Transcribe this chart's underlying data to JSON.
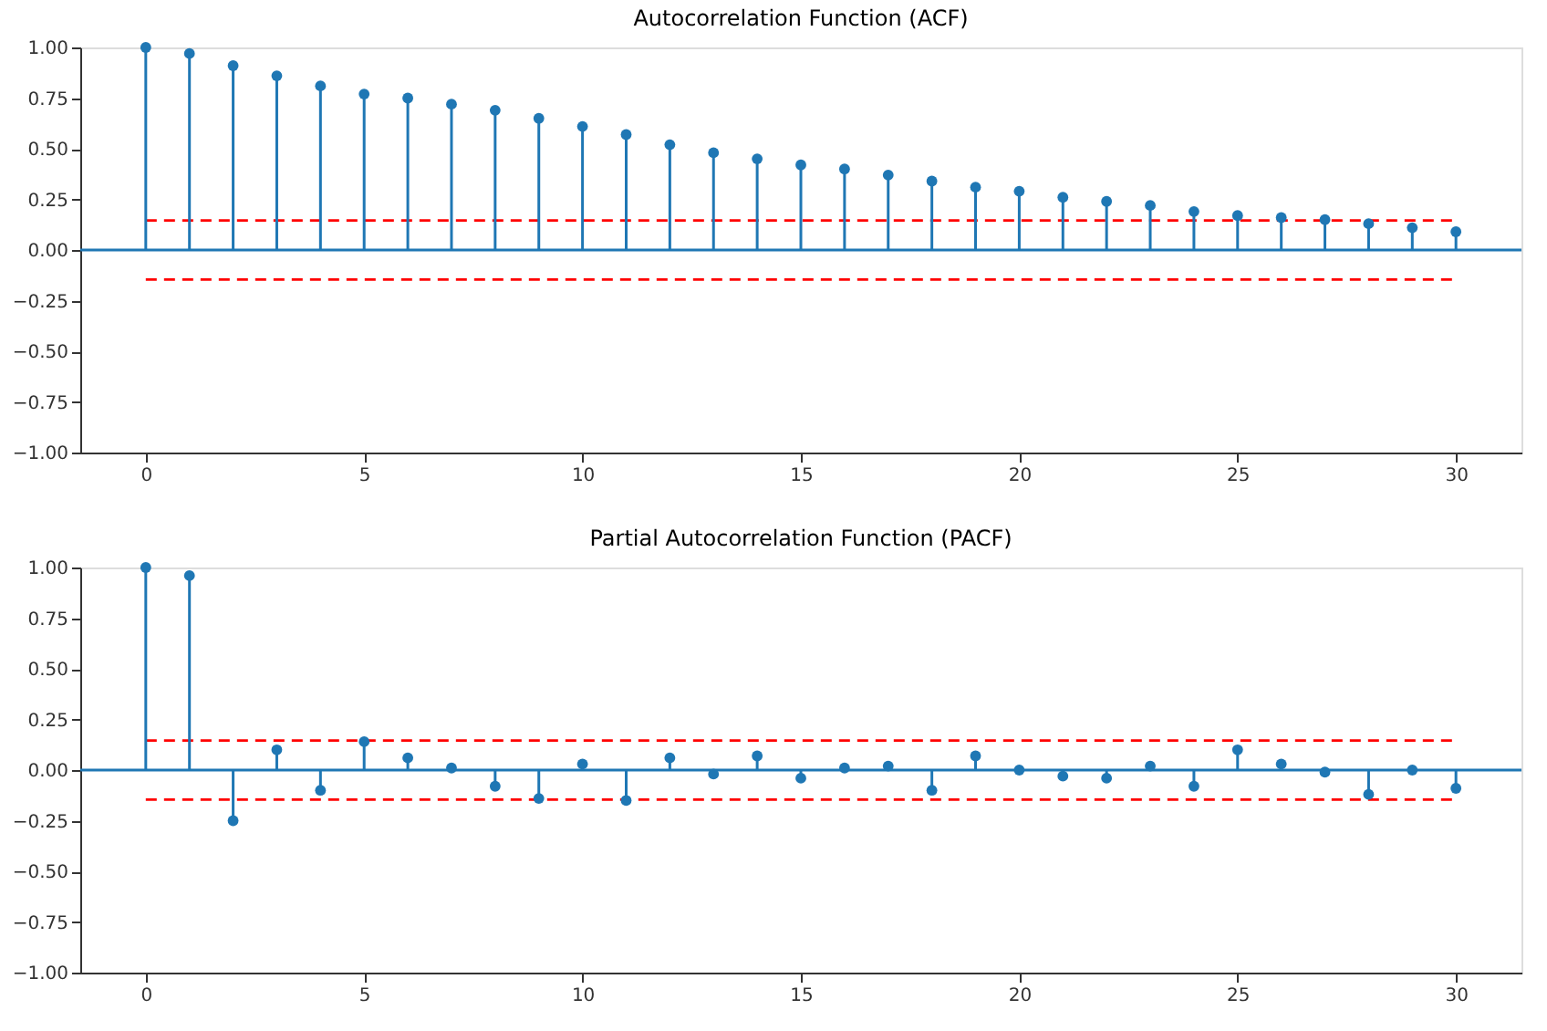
{
  "chart_data": [
    {
      "type": "lollipop",
      "title": "Autocorrelation Function (ACF)",
      "x": [
        0,
        1,
        2,
        3,
        4,
        5,
        6,
        7,
        8,
        9,
        10,
        11,
        12,
        13,
        14,
        15,
        16,
        17,
        18,
        19,
        20,
        21,
        22,
        23,
        24,
        25,
        26,
        27,
        28,
        29,
        30
      ],
      "series": [
        {
          "color": "#1f77b4",
          "values": [
            1.0,
            0.97,
            0.91,
            0.86,
            0.81,
            0.77,
            0.75,
            0.72,
            0.69,
            0.65,
            0.61,
            0.57,
            0.52,
            0.48,
            0.45,
            0.42,
            0.4,
            0.37,
            0.34,
            0.31,
            0.29,
            0.26,
            0.24,
            0.22,
            0.19,
            0.17,
            0.16,
            0.15,
            0.13,
            0.11,
            0.09
          ]
        }
      ],
      "xlim": [
        -1.5,
        31.5
      ],
      "xticks": [
        0,
        5,
        10,
        15,
        20,
        25,
        30
      ],
      "ylim": [
        -1,
        1
      ],
      "yticks": [
        {
          "value": -1,
          "label": "−1.00"
        },
        {
          "value": -0.75,
          "label": "−0.75"
        },
        {
          "value": -0.5,
          "label": "−0.50"
        },
        {
          "value": -0.25,
          "label": "−0.25"
        },
        {
          "value": 0,
          "label": "0.00"
        },
        {
          "value": 0.25,
          "label": "0.25"
        },
        {
          "value": 0.5,
          "label": "0.50"
        },
        {
          "value": 0.75,
          "label": "0.75"
        },
        {
          "value": 1,
          "label": "1.00"
        }
      ],
      "ref_lines": [
        {
          "axis": "y",
          "value": 0,
          "color": "#1f77b4",
          "line_style": "solid"
        },
        {
          "axis": "y",
          "value": 0.146,
          "color": "#ff0000",
          "line_style": "dashed"
        },
        {
          "axis": "y",
          "value": -0.146,
          "color": "#ff0000",
          "line_style": "dashed"
        }
      ],
      "marker": "circle",
      "grid": false
    },
    {
      "type": "lollipop",
      "title": "Partial Autocorrelation Function (PACF)",
      "x": [
        0,
        1,
        2,
        3,
        4,
        5,
        6,
        7,
        8,
        9,
        10,
        11,
        12,
        13,
        14,
        15,
        16,
        17,
        18,
        19,
        20,
        21,
        22,
        23,
        24,
        25,
        26,
        27,
        28,
        29,
        30
      ],
      "series": [
        {
          "color": "#1f77b4",
          "values": [
            1.0,
            0.96,
            -0.25,
            0.1,
            -0.1,
            0.14,
            0.06,
            0.01,
            -0.08,
            -0.14,
            0.03,
            -0.15,
            0.06,
            -0.02,
            0.07,
            -0.04,
            0.01,
            0.02,
            -0.1,
            0.07,
            0.0,
            -0.03,
            -0.04,
            0.02,
            -0.08,
            0.1,
            0.03,
            -0.01,
            -0.12,
            0.0,
            -0.09
          ]
        }
      ],
      "xlim": [
        -1.5,
        31.5
      ],
      "xticks": [
        0,
        5,
        10,
        15,
        20,
        25,
        30
      ],
      "ylim": [
        -1,
        1
      ],
      "yticks": [
        {
          "value": -1,
          "label": "−1.00"
        },
        {
          "value": -0.75,
          "label": "−0.75"
        },
        {
          "value": -0.5,
          "label": "−0.50"
        },
        {
          "value": -0.25,
          "label": "−0.25"
        },
        {
          "value": 0,
          "label": "0.00"
        },
        {
          "value": 0.25,
          "label": "0.25"
        },
        {
          "value": 0.5,
          "label": "0.50"
        },
        {
          "value": 0.75,
          "label": "0.75"
        },
        {
          "value": 1,
          "label": "1.00"
        }
      ],
      "ref_lines": [
        {
          "axis": "y",
          "value": 0,
          "color": "#1f77b4",
          "line_style": "solid"
        },
        {
          "axis": "y",
          "value": 0.146,
          "color": "#ff0000",
          "line_style": "dashed"
        },
        {
          "axis": "y",
          "value": -0.146,
          "color": "#ff0000",
          "line_style": "dashed"
        }
      ],
      "marker": "circle",
      "grid": false
    }
  ]
}
